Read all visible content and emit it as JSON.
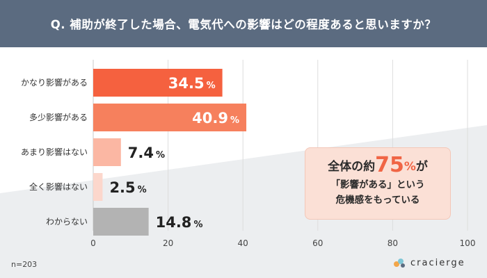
{
  "header": {
    "question": "Q. 補助が終了した場合、電気代への影響はどの程度あると思いますか？"
  },
  "chart_data": {
    "type": "bar",
    "orientation": "horizontal",
    "categories": [
      "かなり影響がある",
      "多少影響がある",
      "あまり影響はない",
      "全く影響はない",
      "わからない"
    ],
    "values": [
      34.5,
      40.9,
      7.4,
      2.5,
      14.8
    ],
    "value_labels": [
      "34.5",
      "40.9",
      "7.4",
      "2.5",
      "14.8"
    ],
    "unit": "%",
    "xlim": [
      0,
      100
    ],
    "xticks": [
      0,
      20,
      40,
      60,
      80,
      100
    ],
    "grid": true,
    "colors": [
      "#f5613f",
      "#f6805d",
      "#fbb7a3",
      "#fcd7cc",
      "#b3b3b3"
    ]
  },
  "callout": {
    "prefix": "全体の約",
    "number": "75",
    "percent": "%",
    "suffix": "が",
    "line2": "「影響がある」という",
    "line3": "危機感をもっている"
  },
  "footer": {
    "sample": "n=203",
    "brand": "cracierge"
  },
  "colors": {
    "header_bg": "#5b6b80",
    "accent": "#f06545"
  }
}
